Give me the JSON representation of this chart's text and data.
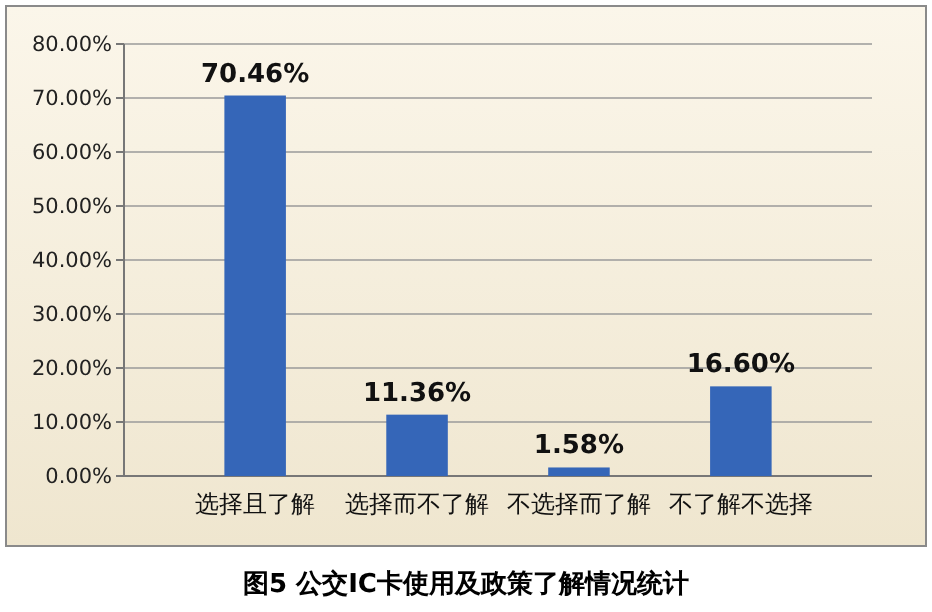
{
  "chart_data": {
    "type": "bar",
    "title": "图5  公交IC卡使用及政策了解情况统计",
    "categories": [
      "选择且了解",
      "选择而不了解",
      "不选择而了解",
      "不了解不选择"
    ],
    "values": [
      70.46,
      11.36,
      1.58,
      16.6
    ],
    "value_labels": [
      "70.46%",
      "11.36%",
      "1.58%",
      "16.60%"
    ],
    "color": "#3566b8",
    "ylim": [
      0,
      80
    ],
    "yticks": [
      {
        "value": 0,
        "label": "0.00%"
      },
      {
        "value": 10,
        "label": "10.00%"
      },
      {
        "value": 20,
        "label": "20.00%"
      },
      {
        "value": 30,
        "label": "30.00%"
      },
      {
        "value": 40,
        "label": "40.00%"
      },
      {
        "value": 50,
        "label": "50.00%"
      },
      {
        "value": 60,
        "label": "60.00%"
      },
      {
        "value": 70,
        "label": "70.00%"
      },
      {
        "value": 80,
        "label": "80.00%"
      }
    ],
    "grid": "y"
  }
}
